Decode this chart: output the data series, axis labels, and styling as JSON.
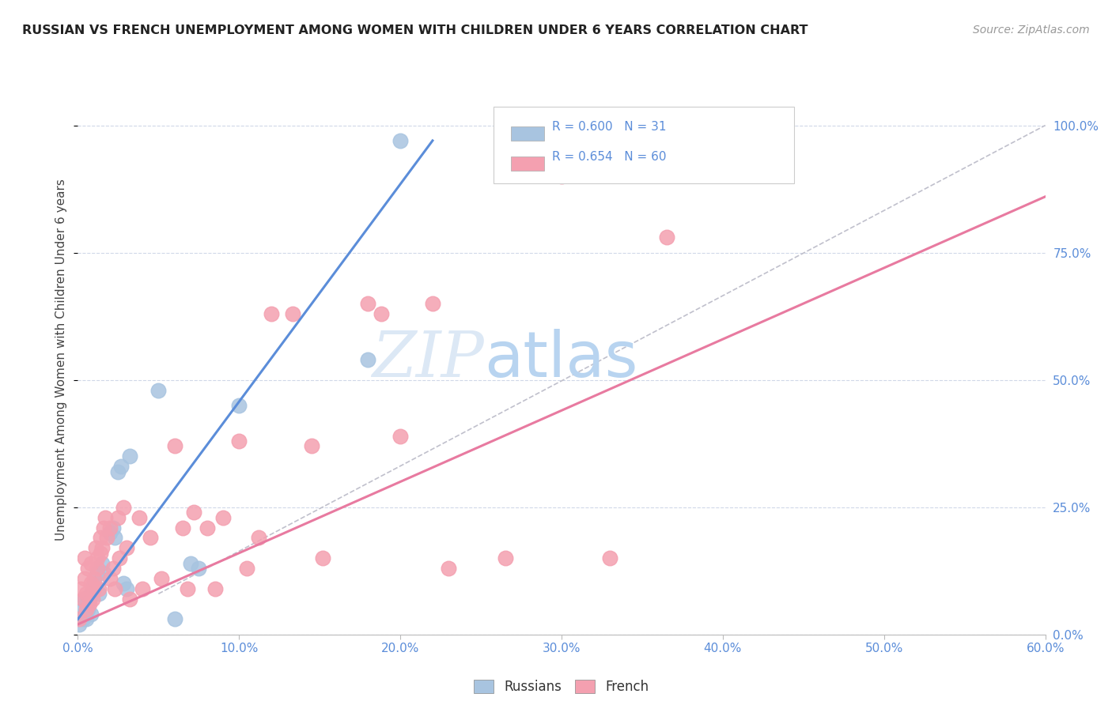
{
  "title": "RUSSIAN VS FRENCH UNEMPLOYMENT AMONG WOMEN WITH CHILDREN UNDER 6 YEARS CORRELATION CHART",
  "source": "Source: ZipAtlas.com",
  "ylabel": "Unemployment Among Women with Children Under 6 years",
  "xlim": [
    0.0,
    0.6
  ],
  "ylim": [
    0.0,
    1.08
  ],
  "legend_entries": [
    {
      "label": "Russians",
      "color": "#a8c4e0",
      "R": 0.6,
      "N": 31
    },
    {
      "label": "French",
      "color": "#f4a0b0",
      "R": 0.654,
      "N": 60
    }
  ],
  "watermark_zip": "ZIP",
  "watermark_atlas": "atlas",
  "russian_points": [
    [
      0.001,
      0.02
    ],
    [
      0.003,
      0.03
    ],
    [
      0.003,
      0.05
    ],
    [
      0.004,
      0.07
    ],
    [
      0.004,
      0.04
    ],
    [
      0.005,
      0.06
    ],
    [
      0.005,
      0.03
    ],
    [
      0.006,
      0.05
    ],
    [
      0.007,
      0.07
    ],
    [
      0.008,
      0.04
    ],
    [
      0.008,
      0.08
    ],
    [
      0.01,
      0.1
    ],
    [
      0.012,
      0.12
    ],
    [
      0.013,
      0.08
    ],
    [
      0.015,
      0.14
    ],
    [
      0.016,
      0.12
    ],
    [
      0.02,
      0.2
    ],
    [
      0.022,
      0.21
    ],
    [
      0.023,
      0.19
    ],
    [
      0.025,
      0.32
    ],
    [
      0.027,
      0.33
    ],
    [
      0.028,
      0.1
    ],
    [
      0.03,
      0.09
    ],
    [
      0.032,
      0.35
    ],
    [
      0.05,
      0.48
    ],
    [
      0.06,
      0.03
    ],
    [
      0.07,
      0.14
    ],
    [
      0.075,
      0.13
    ],
    [
      0.1,
      0.45
    ],
    [
      0.18,
      0.54
    ],
    [
      0.2,
      0.97
    ]
  ],
  "french_points": [
    [
      0.001,
      0.03
    ],
    [
      0.002,
      0.09
    ],
    [
      0.003,
      0.07
    ],
    [
      0.004,
      0.11
    ],
    [
      0.004,
      0.15
    ],
    [
      0.005,
      0.05
    ],
    [
      0.005,
      0.08
    ],
    [
      0.006,
      0.13
    ],
    [
      0.007,
      0.06
    ],
    [
      0.008,
      0.1
    ],
    [
      0.008,
      0.14
    ],
    [
      0.009,
      0.07
    ],
    [
      0.01,
      0.09
    ],
    [
      0.01,
      0.11
    ],
    [
      0.011,
      0.17
    ],
    [
      0.012,
      0.13
    ],
    [
      0.012,
      0.15
    ],
    [
      0.013,
      0.09
    ],
    [
      0.014,
      0.16
    ],
    [
      0.014,
      0.19
    ],
    [
      0.015,
      0.17
    ],
    [
      0.016,
      0.21
    ],
    [
      0.017,
      0.23
    ],
    [
      0.018,
      0.19
    ],
    [
      0.02,
      0.21
    ],
    [
      0.02,
      0.11
    ],
    [
      0.022,
      0.13
    ],
    [
      0.023,
      0.09
    ],
    [
      0.025,
      0.23
    ],
    [
      0.026,
      0.15
    ],
    [
      0.028,
      0.25
    ],
    [
      0.03,
      0.17
    ],
    [
      0.032,
      0.07
    ],
    [
      0.038,
      0.23
    ],
    [
      0.04,
      0.09
    ],
    [
      0.045,
      0.19
    ],
    [
      0.052,
      0.11
    ],
    [
      0.06,
      0.37
    ],
    [
      0.065,
      0.21
    ],
    [
      0.068,
      0.09
    ],
    [
      0.072,
      0.24
    ],
    [
      0.08,
      0.21
    ],
    [
      0.085,
      0.09
    ],
    [
      0.09,
      0.23
    ],
    [
      0.1,
      0.38
    ],
    [
      0.105,
      0.13
    ],
    [
      0.112,
      0.19
    ],
    [
      0.12,
      0.63
    ],
    [
      0.133,
      0.63
    ],
    [
      0.145,
      0.37
    ],
    [
      0.152,
      0.15
    ],
    [
      0.18,
      0.65
    ],
    [
      0.188,
      0.63
    ],
    [
      0.2,
      0.39
    ],
    [
      0.22,
      0.65
    ],
    [
      0.23,
      0.13
    ],
    [
      0.265,
      0.15
    ],
    [
      0.3,
      0.9
    ],
    [
      0.33,
      0.15
    ],
    [
      0.365,
      0.78
    ]
  ],
  "russian_line": {
    "x": [
      0.0,
      0.22
    ],
    "y": [
      0.03,
      0.97
    ]
  },
  "french_line": {
    "x": [
      0.0,
      0.6
    ],
    "y": [
      0.02,
      0.86
    ]
  },
  "diagonal_line": {
    "x": [
      0.05,
      0.6
    ],
    "y": [
      0.08,
      1.0
    ]
  },
  "bg_color": "#ffffff",
  "grid_color": "#d0d8e8",
  "title_color": "#222222",
  "axis_label_color": "#5b8dd9",
  "russian_dot_color": "#a8c4e0",
  "french_dot_color": "#f4a0b0",
  "russian_line_color": "#5b8dd9",
  "french_line_color": "#e87aa0",
  "diagonal_color": "#c0c0cc"
}
